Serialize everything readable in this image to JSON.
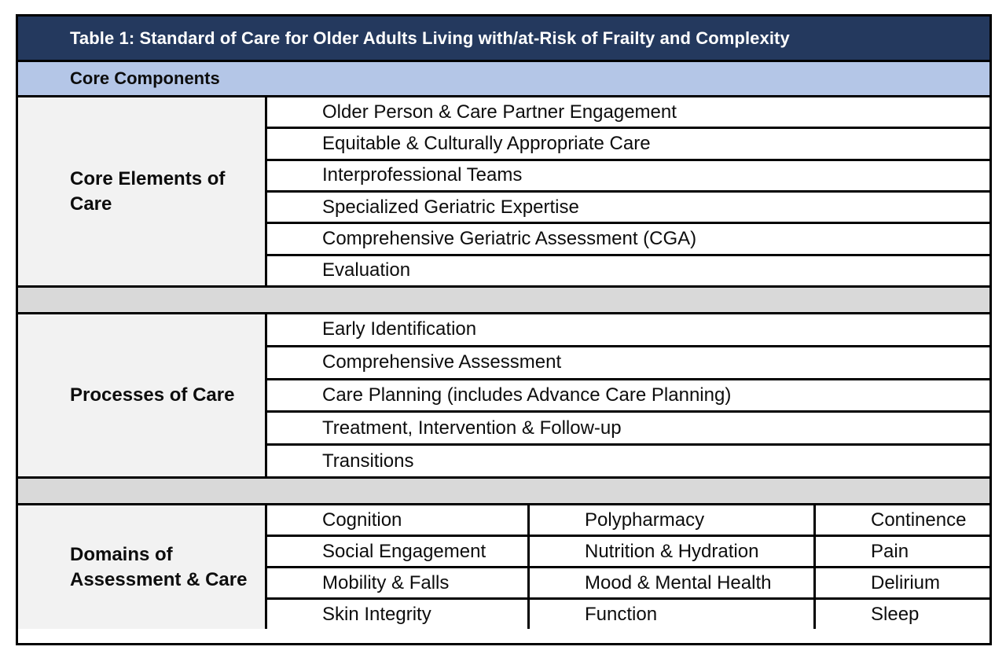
{
  "table": {
    "title": "Table 1: Standard of Care for Older Adults Living with/at-Risk of Frailty and Complexity",
    "subheader": "Core Components",
    "sections": [
      {
        "header_lines": [
          "Core Elements of",
          "Care"
        ],
        "items": [
          "Older Person & Care Partner Engagement",
          "Equitable & Culturally Appropriate Care",
          "Interprofessional Teams",
          "Specialized Geriatric Expertise",
          "Comprehensive Geriatric Assessment (CGA)",
          "Evaluation"
        ]
      },
      {
        "header_lines": [
          "Processes of Care"
        ],
        "items": [
          "Early Identification",
          "Comprehensive Assessment",
          "Care Planning (includes Advance Care Planning)",
          "Treatment, Intervention & Follow-up",
          "Transitions"
        ]
      },
      {
        "header_lines": [
          "Domains of",
          "Assessment & Care"
        ],
        "grid": [
          [
            "Cognition",
            "Polypharmacy",
            "Continence"
          ],
          [
            "Social Engagement",
            "Nutrition & Hydration",
            "Pain"
          ],
          [
            "Mobility & Falls",
            "Mood & Mental Health",
            "Delirium"
          ],
          [
            "Skin Integrity",
            "Function",
            "Sleep"
          ]
        ]
      }
    ],
    "colors": {
      "header_bg": "#24395E",
      "header_text": "#FFFFFF",
      "subheader_bg": "#B4C6E7",
      "spacer_bg": "#D9D9D9",
      "row_header_bg": "#F2F2F2",
      "border": "#000000"
    }
  }
}
